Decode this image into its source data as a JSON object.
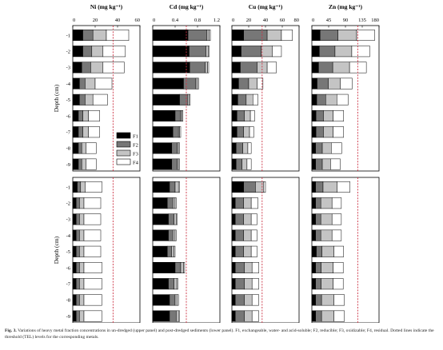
{
  "caption": {
    "label": "Fig. 3.",
    "text": "Variations of heavy metal fraction concentrations in un-dredged (upper panel) and post-dredged sediments (lower panel). F1, exchangeable, water- and acid-soluble; F2, reducible; F3, oxidizable; F4, residual. Dotted lines indicate the threshold (TEL) levels for the corresponding metals."
  },
  "ylabel": "Depth (cm)",
  "legend": [
    "F1",
    "F2",
    "F3",
    "F4"
  ],
  "colors": {
    "F1": "#000000",
    "F2": "#777777",
    "F3": "#c4c4c4",
    "F4": "#ffffff",
    "tel": "#cc3344"
  },
  "depths": [
    "-1",
    "-2",
    "-3",
    "-4",
    "-5",
    "-6",
    "-7",
    "-8",
    "-9"
  ],
  "chart_data": [
    {
      "type": "bar",
      "orientation": "horizontal",
      "stacked": true,
      "panel": "upper",
      "title": "Ni (mg kg⁻¹)",
      "xlim": [
        0,
        60
      ],
      "xticks": [
        "0",
        "20",
        "40",
        "60"
      ],
      "tel": 36,
      "categories": [
        "-1",
        "-2",
        "-3",
        "-4",
        "-5",
        "-6",
        "-7",
        "-8",
        "-9"
      ],
      "series": [
        {
          "name": "F1",
          "values": [
            9,
            9,
            8,
            6,
            6,
            5,
            5,
            5,
            5
          ]
        },
        {
          "name": "F2",
          "values": [
            9,
            8,
            8,
            5,
            5,
            4,
            4,
            3,
            3
          ]
        },
        {
          "name": "F3",
          "values": [
            12,
            10,
            11,
            9,
            7,
            5,
            5,
            4,
            4
          ]
        },
        {
          "name": "F4",
          "values": [
            20,
            20,
            19,
            15,
            13,
            10,
            10,
            9,
            9
          ]
        }
      ]
    },
    {
      "type": "bar",
      "orientation": "horizontal",
      "stacked": true,
      "panel": "upper",
      "title": "Cd (mg kg⁻¹)",
      "xlim": [
        0,
        1.2
      ],
      "xticks": [
        "0",
        "0.4",
        "0.8",
        "1.2"
      ],
      "tel": 0.6,
      "categories": [
        "-1",
        "-2",
        "-3",
        "-4",
        "-5",
        "-6",
        "-7",
        "-8",
        "-9"
      ],
      "series": [
        {
          "name": "F1",
          "values": [
            0.63,
            0.65,
            0.66,
            0.55,
            0.48,
            0.4,
            0.36,
            0.34,
            0.34
          ]
        },
        {
          "name": "F2",
          "values": [
            0.34,
            0.3,
            0.28,
            0.22,
            0.14,
            0.1,
            0.1,
            0.1,
            0.1
          ]
        },
        {
          "name": "F3",
          "values": [
            0.04,
            0.04,
            0.04,
            0.03,
            0.03,
            0.02,
            0.02,
            0.02,
            0.02
          ]
        },
        {
          "name": "F4",
          "values": [
            0.02,
            0.02,
            0.02,
            0.02,
            0.02,
            0.02,
            0.02,
            0.02,
            0.02
          ]
        }
      ]
    },
    {
      "type": "bar",
      "orientation": "horizontal",
      "stacked": true,
      "panel": "upper",
      "title": "Cu (mg kg⁻¹)",
      "xlim": [
        0,
        80
      ],
      "xticks": [
        "0",
        "20",
        "40",
        "60",
        "80"
      ],
      "tel": 36,
      "categories": [
        "-1",
        "-2",
        "-3",
        "-4",
        "-5",
        "-6",
        "-7",
        "-8",
        "-9"
      ],
      "series": [
        {
          "name": "F1",
          "values": [
            14,
            11,
            10,
            8,
            7,
            6,
            6,
            5,
            5
          ]
        },
        {
          "name": "F2",
          "values": [
            28,
            24,
            20,
            12,
            10,
            9,
            8,
            8,
            7
          ]
        },
        {
          "name": "F3",
          "values": [
            17,
            13,
            12,
            10,
            8,
            7,
            7,
            6,
            6
          ]
        },
        {
          "name": "F4",
          "values": [
            13,
            11,
            11,
            7,
            6,
            5,
            5,
            4,
            5
          ]
        }
      ]
    },
    {
      "type": "bar",
      "orientation": "horizontal",
      "stacked": true,
      "panel": "upper",
      "title": "Zn (mg kg⁻¹)",
      "xlim": [
        0,
        180
      ],
      "xticks": [
        "0",
        "45",
        "90",
        "135",
        "180"
      ],
      "tel": 123,
      "categories": [
        "-1",
        "-2",
        "-3",
        "-4",
        "-5",
        "-6",
        "-7",
        "-8",
        "-9"
      ],
      "series": [
        {
          "name": "F1",
          "values": [
            22,
            20,
            18,
            14,
            13,
            11,
            11,
            10,
            10
          ]
        },
        {
          "name": "F2",
          "values": [
            48,
            42,
            38,
            30,
            24,
            20,
            20,
            18,
            18
          ]
        },
        {
          "name": "F3",
          "values": [
            50,
            45,
            45,
            32,
            30,
            26,
            26,
            24,
            22
          ]
        },
        {
          "name": "F4",
          "values": [
            48,
            48,
            45,
            32,
            30,
            28,
            28,
            28,
            26
          ]
        }
      ]
    },
    {
      "type": "bar",
      "orientation": "horizontal",
      "stacked": true,
      "panel": "lower",
      "title": "",
      "xlim": [
        0,
        60
      ],
      "tel": 36,
      "categories": [
        "-1",
        "-2",
        "-3",
        "-4",
        "-5",
        "-6",
        "-7",
        "-8",
        "-9"
      ],
      "series": [
        {
          "name": "F1",
          "values": [
            4,
            3,
            3,
            3,
            3,
            3,
            3,
            3,
            3
          ]
        },
        {
          "name": "F2",
          "values": [
            3,
            3,
            3,
            3,
            3,
            3,
            3,
            3,
            3
          ]
        },
        {
          "name": "F3",
          "values": [
            4,
            4,
            4,
            4,
            4,
            4,
            4,
            4,
            4
          ]
        },
        {
          "name": "F4",
          "values": [
            15,
            15,
            15,
            15,
            15,
            16,
            16,
            16,
            16
          ]
        }
      ]
    },
    {
      "type": "bar",
      "orientation": "horizontal",
      "stacked": true,
      "panel": "lower",
      "title": "",
      "xlim": [
        0,
        1.2
      ],
      "tel": 0.6,
      "categories": [
        "-1",
        "-2",
        "-3",
        "-4",
        "-5",
        "-6",
        "-7",
        "-8",
        "-9"
      ],
      "series": [
        {
          "name": "F1",
          "values": [
            0.3,
            0.26,
            0.28,
            0.28,
            0.26,
            0.4,
            0.28,
            0.3,
            0.3
          ]
        },
        {
          "name": "F2",
          "values": [
            0.1,
            0.1,
            0.1,
            0.08,
            0.08,
            0.1,
            0.1,
            0.1,
            0.12
          ]
        },
        {
          "name": "F3",
          "values": [
            0.06,
            0.04,
            0.04,
            0.04,
            0.04,
            0.05,
            0.05,
            0.04,
            0.04
          ]
        },
        {
          "name": "F4",
          "values": [
            0.02,
            0.02,
            0.02,
            0.02,
            0.02,
            0.02,
            0.02,
            0.02,
            0.02
          ]
        }
      ]
    },
    {
      "type": "bar",
      "orientation": "horizontal",
      "stacked": true,
      "panel": "lower",
      "title": "",
      "xlim": [
        0,
        80
      ],
      "tel": 36,
      "categories": [
        "-1",
        "-2",
        "-3",
        "-4",
        "-5",
        "-6",
        "-7",
        "-8",
        "-9"
      ],
      "series": [
        {
          "name": "F1",
          "values": [
            14,
            4,
            4,
            4,
            4,
            4,
            4,
            4,
            4
          ]
        },
        {
          "name": "F2",
          "values": [
            14,
            10,
            10,
            10,
            10,
            11,
            11,
            11,
            11
          ]
        },
        {
          "name": "F3",
          "values": [
            10,
            9,
            9,
            9,
            9,
            9,
            9,
            9,
            9
          ]
        },
        {
          "name": "F4",
          "values": [
            2,
            8,
            7,
            7,
            7,
            8,
            8,
            8,
            8
          ]
        }
      ]
    },
    {
      "type": "bar",
      "orientation": "horizontal",
      "stacked": true,
      "panel": "lower",
      "title": "",
      "xlim": [
        0,
        180
      ],
      "tel": 123,
      "categories": [
        "-1",
        "-2",
        "-3",
        "-4",
        "-5",
        "-6",
        "-7",
        "-8",
        "-9"
      ],
      "series": [
        {
          "name": "F1",
          "values": [
            10,
            10,
            10,
            10,
            12,
            10,
            10,
            10,
            10
          ]
        },
        {
          "name": "F2",
          "values": [
            20,
            14,
            14,
            14,
            15,
            15,
            15,
            16,
            16
          ]
        },
        {
          "name": "F3",
          "values": [
            38,
            30,
            30,
            30,
            32,
            32,
            32,
            33,
            33
          ]
        },
        {
          "name": "F4",
          "values": [
            34,
            25,
            25,
            25,
            26,
            27,
            27,
            28,
            28
          ]
        }
      ]
    }
  ]
}
